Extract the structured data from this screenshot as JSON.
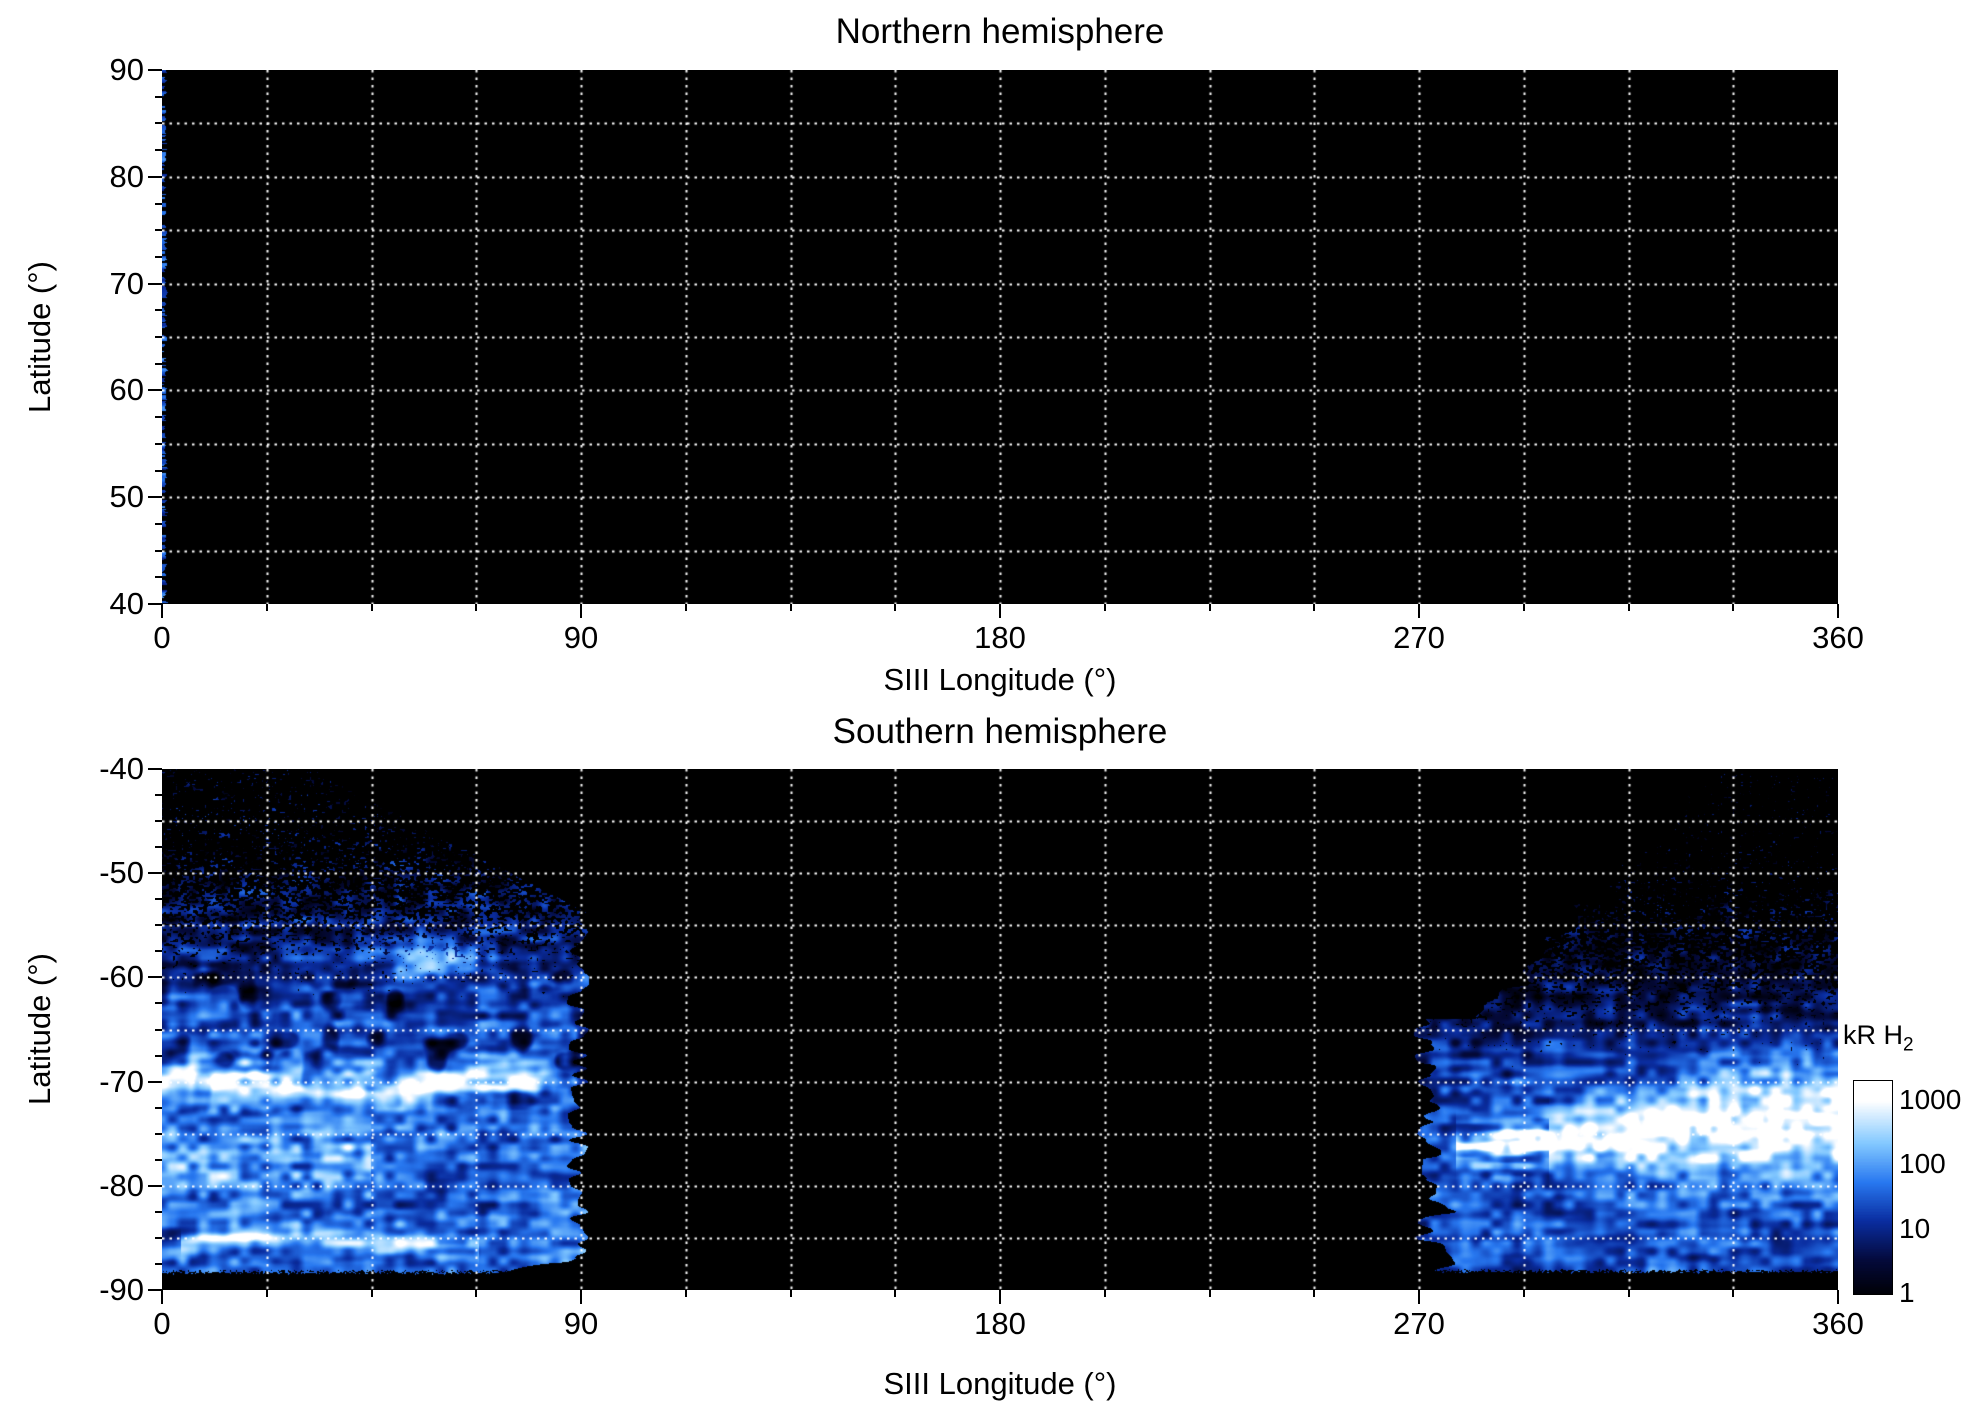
{
  "figure": {
    "background": "#ffffff"
  },
  "palette": {
    "colormap_stops": [
      "#000006",
      "#040a3c",
      "#0a2da0",
      "#2878f0",
      "#82c8ff",
      "#ffffff"
    ],
    "grid_color": "#ffffff",
    "axis_color": "#000000"
  },
  "colorbar": {
    "title": "kR H",
    "title_sub": "2",
    "scale": "log",
    "tick_labels": [
      "1000",
      "100",
      "10",
      "1"
    ],
    "tick_values": [
      1000,
      100,
      10,
      1
    ],
    "range_kR": [
      1,
      1000
    ]
  },
  "chart_data": [
    {
      "type": "heatmap",
      "title": "Northern hemisphere",
      "xlabel": "SIII Longitude (°)",
      "ylabel": "Latitude (°)",
      "xlim": [
        0,
        360
      ],
      "ylim": [
        40,
        90
      ],
      "xticks": [
        0,
        90,
        180,
        270,
        360
      ],
      "yticks": [
        90,
        80,
        70,
        60,
        50,
        40
      ],
      "x_minor_deg": 22.5,
      "y_minor_deg": 2.5,
      "x_grid_deg": 22.5,
      "y_grid_deg": 5,
      "grid": "white dotted",
      "background": "black (no coverage)",
      "features": [
        {
          "name": "observation-edge-strip",
          "kind": "edge-strip",
          "lon_max": 1.3,
          "lat": [
            40,
            90
          ],
          "desc": "sparse blue dashes along 0 deg longitude only; rest of map has no emission",
          "intensity_kR_max": 100
        }
      ]
    },
    {
      "type": "heatmap",
      "title": "Southern hemisphere",
      "xlabel": "SIII Longitude (°)",
      "ylabel": "Latitude (°)",
      "xlim": [
        0,
        360
      ],
      "ylim": [
        -90,
        -40
      ],
      "xticks": [
        0,
        90,
        180,
        270,
        360
      ],
      "yticks": [
        -40,
        -50,
        -60,
        -70,
        -80,
        -90
      ],
      "x_minor_deg": 22.5,
      "y_minor_deg": 2.5,
      "x_grid_deg": 22.5,
      "y_grid_deg": 5,
      "grid": "white dotted",
      "background": "black (no coverage)",
      "features": [
        {
          "name": "west-emission-region",
          "kind": "region-west",
          "lon_min": 0,
          "lon_max": 92,
          "top_flat_lon": 32,
          "top_lat": -40,
          "top_right_lat": -53.5,
          "bottom_lat": -88.3,
          "cov_lat": [
            -44,
            -64
          ],
          "base_log_kR": [
            0.75,
            1.6
          ],
          "desc": "patchy streaked emission 1-100 kR, sparse dashes near -40, dense toward pole, sharp ragged cutoff near 90 deg longitude"
        },
        {
          "name": "west-main-oval",
          "kind": "band",
          "lon": [
            0,
            85
          ],
          "lat_center": -70,
          "lat_sigma": 1.15,
          "amp_log": 1.8,
          "desc": "thin bright white auroral arc ~1000 kR near -70 latitude"
        },
        {
          "name": "west-secondary-band",
          "kind": "band",
          "lon": [
            0,
            45
          ],
          "lat_center": -77.5,
          "lat_sigma": 2.3,
          "amp_log": 0.75,
          "desc": "broader diffuse bright area at lower left"
        },
        {
          "name": "west-polar-arc",
          "kind": "band",
          "lon": [
            4,
            68
          ],
          "lat_center": -85.6,
          "lat_sigma": 0.55,
          "amp_log": 1.25,
          "desc": "thin curved bright streaks near -86"
        },
        {
          "name": "west-bright-spot",
          "kind": "spot",
          "lon_center": 58,
          "lat_center": -58,
          "lon_sigma": 7,
          "lat_sigma": 1.15,
          "amp_log": 1.55,
          "desc": "isolated bright white patch near (58,-58)"
        },
        {
          "name": "east-emission-region",
          "kind": "region-east",
          "lon_min": 265,
          "lon_max": 360,
          "edge_lon_at_top": 334,
          "edge_slope_deg_per_lat": 2.1,
          "edge_knee_lat": -64,
          "edge_lon_below_knee": 273,
          "bottom_lat": -88.2,
          "cov_lat": [
            -48,
            -70
          ],
          "base_log_kR": [
            0.55,
            1.45
          ],
          "desc": "speckled dark-blue emission at upper right strengthening toward the pole"
        },
        {
          "name": "east-main-oval",
          "kind": "wedge-band",
          "lon": [
            278,
            360
          ],
          "lat_center_start": -76,
          "lat_center_end": -73.4,
          "sigma_start": 1.2,
          "sigma_end": 4.0,
          "amp_log": 2.2,
          "finger_lon_max": 298,
          "desc": "broad bright white auroral band ~1000 kR widening toward 360 deg, streaky fingers on its western edge"
        }
      ]
    }
  ]
}
